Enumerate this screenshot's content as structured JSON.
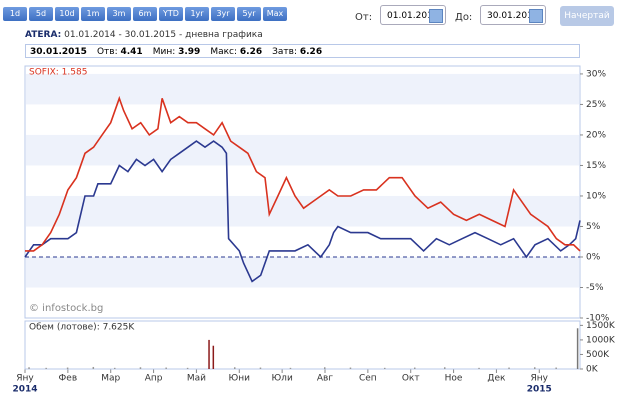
{
  "toolbar": {
    "ranges": [
      "1d",
      "5d",
      "10d",
      "1m",
      "3m",
      "6m",
      "YTD",
      "1yr",
      "3yr",
      "5yr",
      "Max"
    ],
    "from_label": "От:",
    "from_value": "01.01.2014",
    "to_label": "До:",
    "to_value": "30.01.2015",
    "button": "Начертай"
  },
  "header": {
    "symbol": "ATERA:",
    "period": "01.01.2014 - 30.01.2015 - дневна графика"
  },
  "info": {
    "date": "30.01.2015",
    "items": [
      {
        "label": "Отв:",
        "value": 4.41
      },
      {
        "label": "Мин:",
        "value": 3.99
      },
      {
        "label": "Макс:",
        "value": 6.26
      },
      {
        "label": "Затв:",
        "value": 6.26
      }
    ]
  },
  "chart_data": [
    {
      "type": "line",
      "watermark": "© infostock.bg",
      "zero_line": true,
      "bands": true,
      "xlim": [
        0,
        12.95
      ],
      "xticks": [
        {
          "value": 0,
          "label": "Яну"
        },
        {
          "value": 1,
          "label": "Фев"
        },
        {
          "value": 2,
          "label": "Мар"
        },
        {
          "value": 3,
          "label": "Апр"
        },
        {
          "value": 4,
          "label": "Май"
        },
        {
          "value": 5,
          "label": "Юни"
        },
        {
          "value": 6,
          "label": "Юли"
        },
        {
          "value": 7,
          "label": "Авг"
        },
        {
          "value": 8,
          "label": "Сеп"
        },
        {
          "value": 9,
          "label": "Окт"
        },
        {
          "value": 10,
          "label": "Ное"
        },
        {
          "value": 11,
          "label": "Дек"
        },
        {
          "value": 12,
          "label": "Яну"
        }
      ],
      "xyears": [
        {
          "value": 0,
          "label": "2014"
        },
        {
          "value": 12,
          "label": "2015"
        }
      ],
      "ylim": [
        -10,
        31.3
      ],
      "yticks": [
        {
          "value": 30,
          "label": "30%"
        },
        {
          "value": 25,
          "label": "25%"
        },
        {
          "value": 20,
          "label": "20%"
        },
        {
          "value": 15,
          "label": "15%"
        },
        {
          "value": 10,
          "label": "10%"
        },
        {
          "value": 5,
          "label": "5%"
        },
        {
          "value": 0,
          "label": "0%"
        },
        {
          "value": -5,
          "label": "-5%"
        },
        {
          "value": -10,
          "label": "-10%"
        }
      ],
      "series": [
        {
          "color": "#2b3990",
          "x": [
            0,
            0.2,
            0.4,
            0.6,
            0.8,
            1.0,
            1.2,
            1.4,
            1.6,
            1.7,
            2.0,
            2.2,
            2.4,
            2.6,
            2.8,
            3.0,
            3.2,
            3.4,
            3.6,
            3.8,
            4.0,
            4.2,
            4.4,
            4.6,
            4.7,
            4.75,
            5.0,
            5.1,
            5.3,
            5.5,
            5.7,
            6.0,
            6.3,
            6.6,
            6.9,
            7.1,
            7.2,
            7.3,
            7.6,
            8.0,
            8.3,
            8.6,
            9.0,
            9.3,
            9.6,
            9.9,
            10.2,
            10.5,
            10.8,
            11.1,
            11.4,
            11.7,
            11.9,
            12.2,
            12.5,
            12.7,
            12.85,
            12.95
          ],
          "values": [
            0,
            2,
            2,
            3,
            3,
            3,
            4,
            10,
            10,
            12,
            12,
            15,
            14,
            16,
            15,
            16,
            14,
            16,
            17,
            18,
            19,
            18,
            19,
            18,
            17,
            3,
            1,
            -1,
            -4,
            -3,
            1,
            1,
            1,
            2,
            0,
            2,
            4,
            5,
            4,
            4,
            3,
            3,
            3,
            1,
            3,
            2,
            3,
            4,
            3,
            2,
            3,
            0,
            2,
            3,
            1,
            2,
            3,
            6
          ]
        },
        {
          "name": "SOFIX: 1.585",
          "color": "#d9321f",
          "x": [
            0,
            0.2,
            0.4,
            0.6,
            0.8,
            1.0,
            1.2,
            1.4,
            1.6,
            1.8,
            2.0,
            2.2,
            2.3,
            2.5,
            2.7,
            2.9,
            3.1,
            3.2,
            3.4,
            3.6,
            3.8,
            4.0,
            4.2,
            4.4,
            4.6,
            4.8,
            5.0,
            5.2,
            5.4,
            5.6,
            5.7,
            5.9,
            6.1,
            6.3,
            6.5,
            6.7,
            6.9,
            7.1,
            7.3,
            7.6,
            7.9,
            8.2,
            8.5,
            8.8,
            9.1,
            9.4,
            9.7,
            10.0,
            10.3,
            10.6,
            10.9,
            11.2,
            11.4,
            11.6,
            11.8,
            12.0,
            12.2,
            12.4,
            12.6,
            12.8,
            12.95
          ],
          "values": [
            1,
            1,
            2,
            4,
            7,
            11,
            13,
            17,
            18,
            20,
            22,
            26,
            24,
            21,
            22,
            20,
            21,
            26,
            22,
            23,
            22,
            22,
            21,
            20,
            22,
            19,
            18,
            17,
            14,
            13,
            7,
            10,
            13,
            10,
            8,
            9,
            10,
            11,
            10,
            10,
            11,
            11,
            13,
            13,
            10,
            8,
            9,
            7,
            6,
            7,
            6,
            5,
            11,
            9,
            7,
            6,
            5,
            3,
            2,
            2,
            1
          ]
        }
      ]
    },
    {
      "type": "bar",
      "title": "Обем (лотове): 7.625K",
      "xlim": [
        0,
        12.95
      ],
      "ylim": [
        0,
        1650000
      ],
      "yticks": [
        {
          "value": 1500000,
          "label": "1500K"
        },
        {
          "value": 1000000,
          "label": "1000K"
        },
        {
          "value": 500000,
          "label": "500K"
        },
        {
          "value": 0,
          "label": "0K"
        }
      ],
      "x": [
        0.1,
        0.5,
        1.0,
        1.6,
        2.1,
        2.7,
        3.3,
        3.8,
        4.3,
        4.4,
        4.9,
        5.5,
        6.2,
        7.0,
        7.6,
        8.4,
        9.1,
        9.8,
        10.6,
        11.3,
        11.9,
        12.4,
        12.9
      ],
      "values": [
        60000,
        40000,
        50000,
        70000,
        40000,
        60000,
        50000,
        40000,
        1000000,
        800000,
        60000,
        50000,
        40000,
        60000,
        50000,
        40000,
        50000,
        60000,
        40000,
        50000,
        60000,
        50000,
        1400000
      ],
      "colors": [
        "#999",
        "#999",
        "#999",
        "#999",
        "#999",
        "#999",
        "#999",
        "#999",
        "#8b1a1a",
        "#8b1a1a",
        "#999",
        "#999",
        "#999",
        "#999",
        "#999",
        "#999",
        "#999",
        "#999",
        "#999",
        "#999",
        "#999",
        "#999",
        "#777"
      ]
    }
  ]
}
